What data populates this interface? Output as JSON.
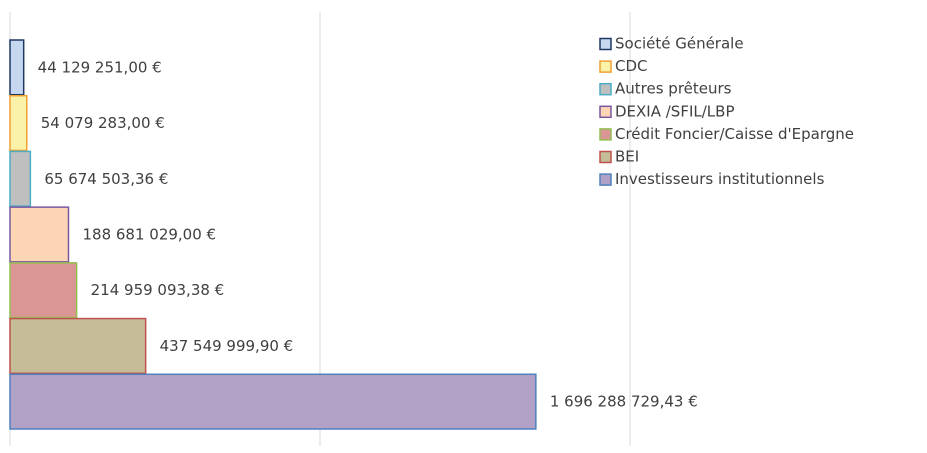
{
  "chart_data": {
    "type": "barh",
    "categories": [
      "Société Générale",
      "CDC",
      "Autres prêteurs",
      "DEXIA /SFIL/LBP",
      "Crédit Foncier/Caisse d'Epargne",
      "BEI",
      "Investisseurs institutionnels"
    ],
    "values": [
      44129251.0,
      54079283.0,
      65674503.36,
      188681029.0,
      214959093.38,
      437549999.9,
      1696288729.43
    ],
    "value_labels": [
      "44 129 251,00 €",
      "54 079 283,00 €",
      "65 674 503,36 €",
      "188 681 029,00 €",
      "214 959 093,38 €",
      "437 549 999,90 €",
      "1 696 288 729,43 €"
    ],
    "colors": [
      "#c6d7f0",
      "#fbf2a9",
      "#bfbfbf",
      "#fcd5b5",
      "#d99694",
      "#c4bd97",
      "#b2a1c7"
    ],
    "edge_colors": [
      "#1f3864",
      "#f0a030",
      "#4bacc6",
      "#7a58a0",
      "#92c050",
      "#c0504d",
      "#4f81bd"
    ],
    "xlim": [
      0,
      2000000000
    ],
    "xticks": [
      0,
      1000000000,
      2000000000
    ],
    "grid": true,
    "legend": "upper right"
  }
}
